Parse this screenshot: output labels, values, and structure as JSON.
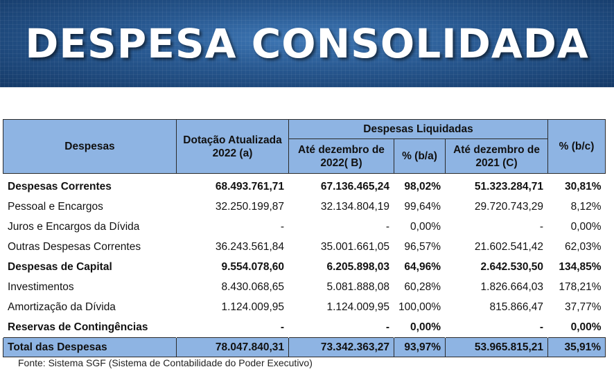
{
  "banner": {
    "title": "DESPESA CONSOLIDADA"
  },
  "table": {
    "headers": {
      "despesas": "Despesas",
      "dotacao": "Dotação Atualizada 2022 (a)",
      "liquidadas_group": "Despesas Liquidadas",
      "ate_dez_2022": "Até dezembro de 2022( B)",
      "pct_ba": "% (b/a)",
      "ate_dez_2021": "Até dezembro de 2021 (C)",
      "pct_bc": "% (b/c)"
    },
    "rows": [
      {
        "label": "Despesas Correntes",
        "dotacao": "68.493.761,71",
        "liq_2022": "67.136.465,24",
        "pct_ba": "98,02%",
        "liq_2021": "51.323.284,71",
        "pct_bc": "30,81%"
      },
      {
        "label": "Pessoal e Encargos",
        "dotacao": "32.250.199,87",
        "liq_2022": "32.134.804,19",
        "pct_ba": "99,64%",
        "liq_2021": "29.720.743,29",
        "pct_bc": "8,12%"
      },
      {
        "label": "Juros e Encargos da Dívida",
        "dotacao": "-",
        "liq_2022": "-",
        "pct_ba": "0,00%",
        "liq_2021": "-",
        "pct_bc": "0,00%"
      },
      {
        "label": "Outras Despesas Correntes",
        "dotacao": "36.243.561,84",
        "liq_2022": "35.001.661,05",
        "pct_ba": "96,57%",
        "liq_2021": "21.602.541,42",
        "pct_bc": "62,03%"
      },
      {
        "label": "Despesas de Capital",
        "dotacao": "9.554.078,60",
        "liq_2022": "6.205.898,03",
        "pct_ba": "64,96%",
        "liq_2021": "2.642.530,50",
        "pct_bc": "134,85%"
      },
      {
        "label": "Investimentos",
        "dotacao": "8.430.068,65",
        "liq_2022": "5.081.888,08",
        "pct_ba": "60,28%",
        "liq_2021": "1.826.664,03",
        "pct_bc": "178,21%"
      },
      {
        "label": "Amortização da Dívida",
        "dotacao": "1.124.009,95",
        "liq_2022": "1.124.009,95",
        "pct_ba": "100,00%",
        "liq_2021": "815.866,47",
        "pct_bc": "37,77%"
      },
      {
        "label": "Reservas de Contingências",
        "dotacao": "-",
        "liq_2022": "-",
        "pct_ba": "0,00%",
        "liq_2021": "-",
        "pct_bc": "0,00%"
      }
    ],
    "total": {
      "label": "Total das Despesas",
      "dotacao": "78.047.840,31",
      "liq_2022": "73.342.363,27",
      "pct_ba": "93,97%",
      "liq_2021": "53.965.815,21",
      "pct_bc": "35,91%"
    }
  },
  "source_note": "Fonte: Sistema SGF (Sistema de Contabilidade do Poder Executivo)",
  "colors": {
    "header_fill": "#8eb4e3",
    "banner_blue": "#27578f"
  }
}
